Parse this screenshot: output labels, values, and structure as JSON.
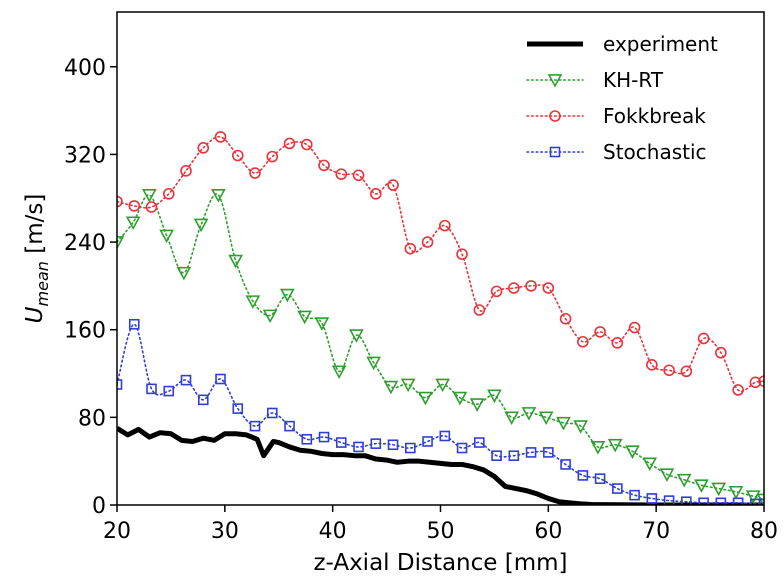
{
  "chart_data": {
    "type": "line",
    "xlabel": "z-Axial Distance [mm]",
    "ylabel": "U",
    "ylabel_subscript": "mean",
    "ylabel_unit": " [m/s]",
    "xlim": [
      20,
      80
    ],
    "ylim": [
      0,
      450
    ],
    "xticks": [
      20,
      30,
      40,
      50,
      60,
      70,
      80
    ],
    "yticks": [
      0,
      80,
      160,
      240,
      320,
      400
    ],
    "grid": false,
    "legend_position": "top-right",
    "series": [
      {
        "name": "experiment",
        "color": "#000000",
        "style": "solid",
        "marker": "none",
        "x": [
          20,
          21,
          22,
          23,
          24,
          25,
          26,
          27,
          28,
          29,
          30,
          31,
          32,
          33,
          33.6,
          34.5,
          35,
          36,
          37,
          38,
          39,
          40,
          41,
          42,
          43,
          44,
          45,
          46,
          47,
          48,
          49,
          50,
          51,
          52,
          53,
          54,
          55,
          56,
          57,
          58,
          59,
          60,
          61,
          62,
          63,
          64,
          65,
          70,
          75,
          80
        ],
        "y": [
          70,
          64,
          69,
          62,
          66,
          65,
          59,
          58,
          61,
          59,
          65,
          65,
          64,
          60,
          45,
          58,
          57,
          53,
          50,
          49,
          47,
          46,
          46,
          45,
          45,
          42,
          41,
          39,
          40,
          40,
          39,
          38,
          37,
          37,
          35,
          32,
          26,
          17,
          15,
          13,
          10,
          6,
          3,
          2,
          1,
          0.5,
          0.3,
          0,
          0,
          0
        ]
      },
      {
        "name": "KH-RT",
        "color": "#2ca02c",
        "style": "dotted",
        "marker": "triangle-down",
        "x": [
          20,
          21.5,
          23,
          24.6,
          26.2,
          27.8,
          29.4,
          31,
          32.6,
          34.2,
          35.8,
          37.4,
          39,
          40.6,
          42.2,
          43.8,
          45.4,
          47,
          48.6,
          50.2,
          51.8,
          53.4,
          55,
          56.6,
          58.2,
          59.8,
          61.4,
          63,
          64.6,
          66.2,
          67.8,
          69.4,
          71,
          72.6,
          74.2,
          75.8,
          77.4,
          79,
          80
        ],
        "y": [
          240,
          258,
          283,
          246,
          212,
          256,
          283,
          223,
          186,
          173,
          192,
          172,
          166,
          122,
          155,
          130,
          108,
          110,
          98,
          110,
          98,
          92,
          100,
          80,
          84,
          80,
          75,
          72,
          53,
          55,
          49,
          38,
          28,
          23,
          18,
          15,
          12,
          8,
          5
        ]
      },
      {
        "name": "Fokkbreak",
        "color": "#e8333a",
        "style": "dotted",
        "marker": "circle",
        "x": [
          20,
          21.6,
          23.2,
          24.8,
          26.4,
          28,
          29.6,
          31.2,
          32.8,
          34.4,
          36,
          37.6,
          39.2,
          40.8,
          42.4,
          44,
          45.6,
          47.2,
          48.8,
          50.4,
          52,
          53.6,
          55.2,
          56.8,
          58.4,
          60,
          61.6,
          63.2,
          64.8,
          66.4,
          68,
          69.6,
          71.2,
          72.8,
          74.4,
          76,
          77.6,
          79.2,
          80
        ],
        "y": [
          277,
          273,
          272,
          284,
          305,
          326,
          336,
          319,
          303,
          318,
          330,
          329,
          310,
          302,
          301,
          284,
          292,
          234,
          240,
          255,
          229,
          178,
          195,
          198,
          200,
          198,
          170,
          149,
          158,
          148,
          162,
          128,
          123,
          122,
          152,
          139,
          105,
          112,
          113
        ]
      },
      {
        "name": "Stochastic",
        "color": "#2f3fd6",
        "style": "dotted",
        "marker": "square",
        "x": [
          20,
          21.6,
          23.2,
          24.8,
          26.4,
          28,
          29.6,
          31.2,
          32.8,
          34.4,
          36,
          37.6,
          39.2,
          40.8,
          42.4,
          44,
          45.6,
          47.2,
          48.8,
          50.4,
          52,
          53.6,
          55.2,
          56.8,
          58.4,
          60,
          61.6,
          63.2,
          64.8,
          66.4,
          68,
          69.6,
          71.2,
          72.8,
          74.4,
          76,
          77.6,
          79.2,
          80
        ],
        "y": [
          110,
          165,
          106,
          104,
          114,
          96,
          115,
          88,
          72,
          84,
          72,
          60,
          62,
          57,
          53,
          56,
          55,
          52,
          58,
          63,
          52,
          57,
          45,
          45,
          48,
          48,
          37,
          27,
          24,
          15,
          9,
          6,
          4,
          3,
          2,
          2,
          2,
          1,
          1
        ]
      }
    ]
  }
}
